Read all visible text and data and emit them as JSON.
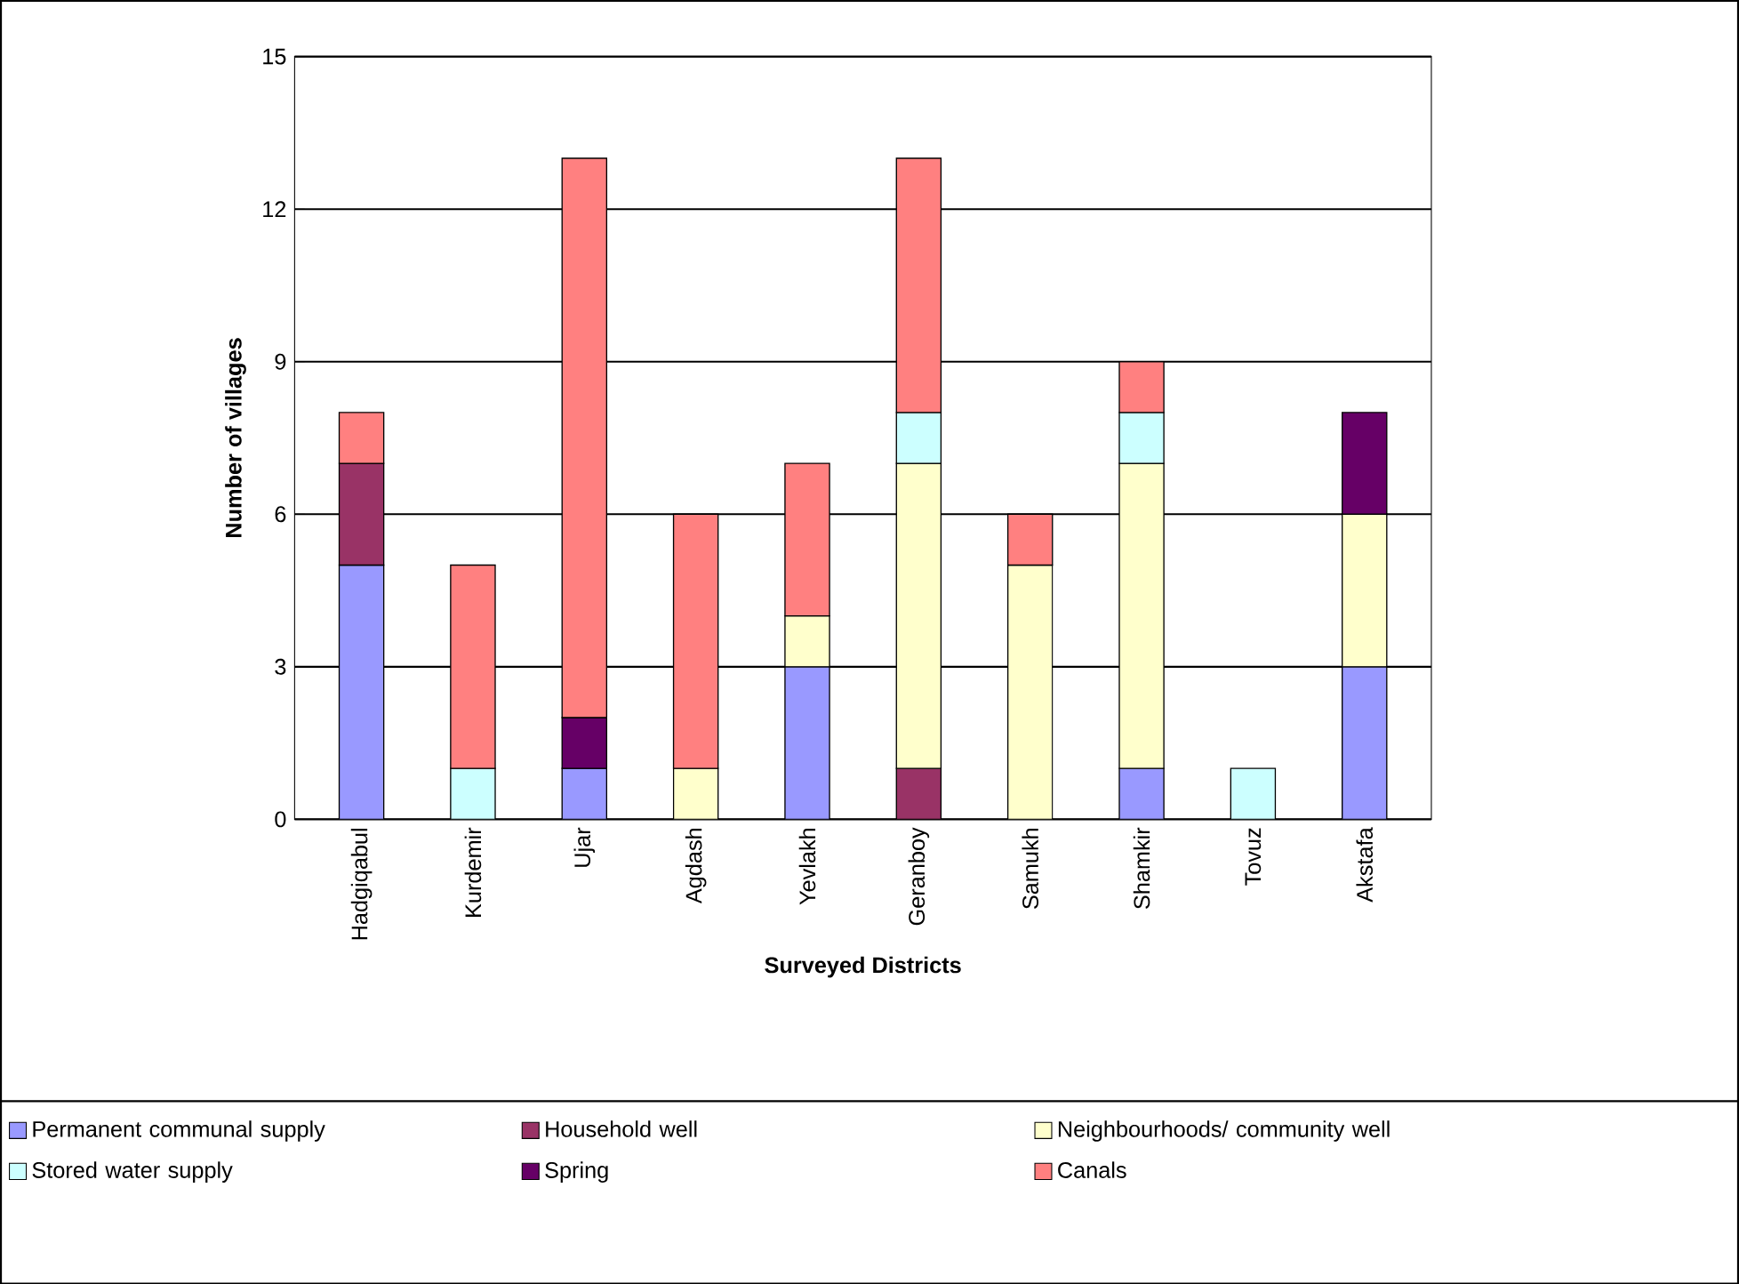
{
  "chart_data": {
    "type": "bar",
    "stacked": true,
    "xlabel": "Surveyed Districts",
    "ylabel": "Number of villages",
    "categories": [
      "Hadgiqabul",
      "Kurdemir",
      "Ujar",
      "Agdash",
      "Yevlakh",
      "Geranboy",
      "Samukh",
      "Shamkir",
      "Tovuz",
      "Akstafa"
    ],
    "series": [
      {
        "name": "Permanent communal supply",
        "color": "#9999ff",
        "values": [
          5,
          null,
          1,
          null,
          3,
          null,
          null,
          1,
          null,
          3
        ]
      },
      {
        "name": "Household well",
        "color": "#993366",
        "values": [
          2,
          null,
          null,
          null,
          null,
          1,
          null,
          null,
          null,
          null
        ]
      },
      {
        "name": "Neighbourhoods/ community well",
        "color": "#ffffcc",
        "values": [
          null,
          null,
          null,
          1,
          1,
          6,
          5,
          6,
          null,
          3
        ]
      },
      {
        "name": "Stored water supply",
        "color": "#ccffff",
        "values": [
          null,
          1,
          null,
          null,
          null,
          1,
          null,
          1,
          1,
          null
        ]
      },
      {
        "name": "Spring",
        "color": "#660066",
        "values": [
          null,
          null,
          1,
          null,
          null,
          null,
          null,
          null,
          null,
          2
        ]
      },
      {
        "name": "Canals",
        "color": "#ff8080",
        "values": [
          1,
          4,
          11,
          5,
          3,
          5,
          1,
          1,
          null,
          null
        ]
      }
    ],
    "ylim": [
      0,
      15
    ],
    "yticks": [
      0,
      3,
      6,
      9,
      12,
      15
    ],
    "grid": "y",
    "legend": "bottom"
  }
}
